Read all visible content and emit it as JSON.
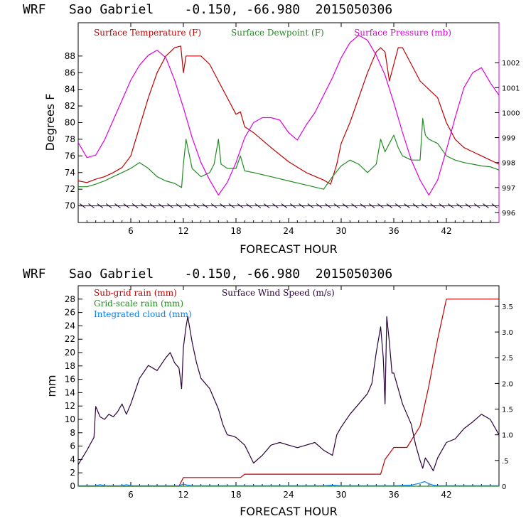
{
  "chart_data": [
    {
      "type": "line",
      "title": "WRF   Sao Gabriel    -0.150, -66.980  2015050306",
      "xlabel": "FORECAST HOUR",
      "ylabel": "Degrees F",
      "xlim": [
        0,
        48
      ],
      "xticks": [
        6,
        12,
        18,
        24,
        30,
        36,
        42
      ],
      "ylim": [
        68,
        92
      ],
      "yticks": [
        70,
        72,
        74,
        76,
        78,
        80,
        82,
        84,
        86,
        88
      ],
      "y2lim": [
        995.6,
        1003.6
      ],
      "y2ticks": [
        996,
        997,
        998,
        999,
        1000,
        1001,
        1002
      ],
      "legend": [
        "Surface Temperature (F)",
        "Surface Dewpoint (F)",
        "Surface Pressure (mb)"
      ],
      "colors": {
        "temp": "#c00000",
        "dew": "#228b22",
        "pres": "#dd00dd",
        "wind": "#2a003a"
      },
      "series": [
        {
          "name": "Surface Temperature (F)",
          "axis": "left",
          "x": [
            0,
            1,
            2,
            3,
            4,
            5,
            6,
            7,
            8,
            9,
            10,
            11,
            11.7,
            12,
            12.3,
            13,
            14,
            15,
            16,
            17,
            18,
            18.5,
            19,
            20,
            22,
            24,
            26,
            28,
            28.8,
            29.5,
            30,
            31,
            32,
            33,
            34,
            34.5,
            35,
            35.5,
            36,
            36.5,
            37,
            38,
            39,
            40,
            41,
            42,
            43,
            44,
            45,
            46,
            47,
            48
          ],
          "values": [
            73.0,
            72.8,
            73.2,
            73.5,
            74.0,
            74.6,
            76.0,
            79.5,
            83.0,
            86.0,
            88.0,
            89.0,
            89.2,
            86.0,
            88.0,
            88.0,
            88.0,
            87.0,
            85.0,
            83.0,
            81.0,
            81.3,
            79.5,
            78.8,
            77.0,
            75.3,
            74.0,
            73.1,
            72.6,
            75.0,
            77.5,
            80.0,
            83.0,
            86.0,
            88.5,
            89.0,
            88.5,
            85.0,
            87.0,
            89.0,
            89.0,
            87.0,
            85.0,
            84.0,
            83.0,
            80.0,
            78.0,
            77.0,
            76.5,
            76.0,
            75.5,
            75.0
          ]
        },
        {
          "name": "Surface Dewpoint (F)",
          "axis": "left",
          "x": [
            0,
            1,
            2,
            3,
            4,
            5,
            6,
            7,
            8,
            9,
            10,
            11,
            11.8,
            12,
            12.3,
            12.7,
            13,
            14,
            15,
            15.5,
            16,
            16.3,
            17,
            18,
            18.5,
            19,
            20,
            22,
            24,
            26,
            28,
            29,
            30,
            31,
            32,
            33,
            34,
            34.5,
            35,
            35.5,
            36,
            36.5,
            37,
            38,
            39,
            39.3,
            39.6,
            40,
            41,
            42,
            43,
            44,
            45,
            46,
            47,
            48
          ],
          "values": [
            72.3,
            72.3,
            72.6,
            73.0,
            73.5,
            74.0,
            74.5,
            75.2,
            74.5,
            73.5,
            73.0,
            72.7,
            72.2,
            75.0,
            78.0,
            76.0,
            74.5,
            73.5,
            74.0,
            75.0,
            78.0,
            75.0,
            74.5,
            74.5,
            76.0,
            74.2,
            74.0,
            73.5,
            73.0,
            72.5,
            72.0,
            73.5,
            74.8,
            75.5,
            75.0,
            74.0,
            75.0,
            78.0,
            76.5,
            77.5,
            78.5,
            77.0,
            76.0,
            75.5,
            75.5,
            80.5,
            78.5,
            78.0,
            77.5,
            76.0,
            75.5,
            75.2,
            75.0,
            74.8,
            74.7,
            74.3
          ]
        },
        {
          "name": "Surface Pressure (mb)",
          "axis": "right",
          "x": [
            0,
            1,
            2,
            3,
            4,
            5,
            6,
            7,
            8,
            9,
            10,
            11,
            12,
            13,
            14,
            15,
            16,
            17,
            18,
            19,
            20,
            21,
            22,
            23,
            24,
            25,
            26,
            27,
            28,
            29,
            30,
            31,
            32,
            33,
            34,
            35,
            36,
            37,
            38,
            39,
            40,
            41,
            42,
            43,
            44,
            45,
            46,
            47,
            48
          ],
          "values": [
            998.8,
            998.2,
            998.3,
            998.9,
            999.7,
            1000.5,
            1001.3,
            1001.9,
            1002.3,
            1002.5,
            1002.2,
            1001.3,
            1000.2,
            999.0,
            998.0,
            997.3,
            996.7,
            997.2,
            998.0,
            999.0,
            999.6,
            999.8,
            999.8,
            999.7,
            999.2,
            998.9,
            999.5,
            1000.0,
            1000.7,
            1001.4,
            1002.2,
            1002.8,
            1003.1,
            1002.9,
            1002.3,
            1001.5,
            1000.4,
            999.2,
            998.1,
            997.3,
            996.7,
            997.3,
            998.5,
            999.8,
            1001.0,
            1001.6,
            1001.8,
            1001.2,
            1000.7
          ]
        }
      ],
      "wind_barb_y": 70
    },
    {
      "type": "line",
      "title": "WRF   Sao Gabriel    -0.150, -66.980  2015050306",
      "xlabel": "FORECAST HOUR",
      "ylabel": "mm",
      "xlim": [
        0,
        48
      ],
      "xticks": [
        6,
        12,
        18,
        24,
        30,
        36,
        42
      ],
      "ylim": [
        0,
        30
      ],
      "yticks": [
        0,
        2,
        4,
        6,
        8,
        10,
        12,
        14,
        16,
        18,
        20,
        22,
        24,
        26,
        28
      ],
      "y2lim": [
        0,
        3.9
      ],
      "y2ticks": [
        0,
        0.5,
        1.0,
        1.5,
        2.0,
        2.5,
        3.0,
        3.5
      ],
      "y2ticklabels": [
        "0",
        ".5",
        "1.0",
        "1.5",
        "2.0",
        "2.5",
        "3.0",
        "3.5"
      ],
      "legend": [
        "Sub-grid rain (mm)",
        "Surface Wind Speed (m/s)",
        "Grid-scale rain (mm)",
        "Integrated cloud (mm)"
      ],
      "colors": {
        "subgrid": "#c00000",
        "wind": "#2a003a",
        "grid": "#228b22",
        "cloud": "#0080ff"
      },
      "series": [
        {
          "name": "Sub-grid rain (mm)",
          "axis": "left",
          "x": [
            0,
            11.5,
            12,
            18.5,
            19,
            34.5,
            35,
            36,
            37.5,
            39,
            40,
            41,
            42,
            42.5,
            48
          ],
          "values": [
            0,
            0,
            1.3,
            1.3,
            1.8,
            1.8,
            4,
            5.8,
            5.8,
            9,
            15,
            22,
            28,
            28,
            28
          ]
        },
        {
          "name": "Surface Wind Speed (m/s)",
          "axis": "right",
          "x": [
            0,
            1,
            1.8,
            2,
            2.5,
            3,
            3.5,
            4,
            4.5,
            5,
            5.5,
            6,
            7,
            8,
            9,
            10,
            10.5,
            11,
            11.5,
            11.8,
            12,
            12.3,
            12.5,
            13,
            13.5,
            14,
            15,
            15.5,
            16,
            16.5,
            17,
            17.5,
            18,
            19,
            20,
            21,
            22,
            23,
            24,
            25,
            26,
            27,
            28,
            29,
            29.5,
            30,
            31,
            32,
            33,
            33.5,
            34,
            34.5,
            34.8,
            35,
            35.2,
            35.5,
            35.8,
            36,
            37,
            38,
            38.5,
            39,
            39.3,
            39.6,
            40,
            40.5,
            41,
            41.5,
            42,
            43,
            44,
            45,
            46,
            47,
            48
          ],
          "values": [
            0.42,
            0.7,
            0.95,
            1.55,
            1.35,
            1.3,
            1.4,
            1.35,
            1.45,
            1.6,
            1.4,
            1.6,
            2.1,
            2.35,
            2.25,
            2.5,
            2.6,
            2.4,
            2.3,
            1.9,
            2.7,
            3.1,
            3.3,
            2.8,
            2.4,
            2.1,
            1.9,
            1.7,
            1.5,
            1.2,
            1.0,
            0.98,
            0.95,
            0.8,
            0.45,
            0.6,
            0.8,
            0.85,
            0.8,
            0.75,
            0.8,
            0.85,
            0.7,
            0.6,
            1.0,
            1.15,
            1.4,
            1.6,
            1.8,
            2.0,
            2.6,
            3.1,
            2.5,
            1.6,
            3.3,
            2.8,
            2.2,
            2.2,
            1.6,
            1.2,
            0.8,
            0.5,
            0.35,
            0.55,
            0.45,
            0.3,
            0.55,
            0.7,
            0.85,
            0.92,
            1.12,
            1.25,
            1.4,
            1.3,
            1.0
          ]
        },
        {
          "name": "Grid-scale rain (mm)",
          "axis": "left",
          "x": [
            0,
            48
          ],
          "values": [
            0,
            0
          ]
        },
        {
          "name": "Integrated cloud (mm)",
          "axis": "right",
          "x": [
            0,
            2,
            2.5,
            3,
            5,
            5.5,
            6,
            11.5,
            12,
            12.5,
            13,
            28,
            29,
            30,
            36,
            38,
            39,
            39.5,
            40,
            40.5,
            41,
            48
          ],
          "values": [
            0.01,
            0.01,
            0.03,
            0.01,
            0.01,
            0.03,
            0.01,
            0.01,
            0.04,
            0.02,
            0.01,
            0.01,
            0.02,
            0.01,
            0.01,
            0.02,
            0.06,
            0.09,
            0.05,
            0.02,
            0.01,
            0.01
          ]
        }
      ]
    }
  ]
}
